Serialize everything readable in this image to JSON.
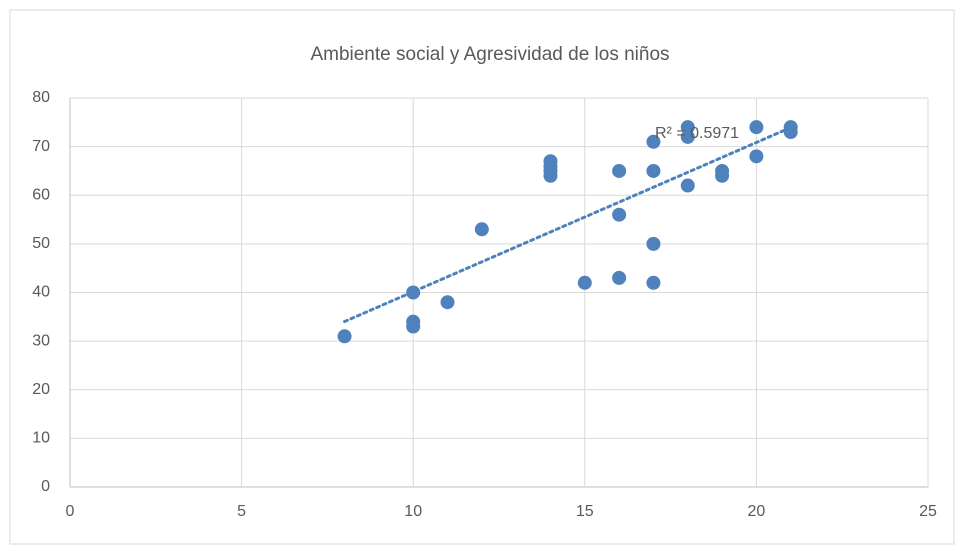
{
  "chart_data": {
    "type": "scatter",
    "title": "Ambiente social y Agresividad de los niños",
    "series": [
      {
        "color": "#4f81bd",
        "x": [
          8,
          10,
          10,
          10,
          11,
          12,
          14,
          14,
          14,
          14,
          15,
          16,
          16,
          16,
          17,
          17,
          17,
          17,
          18,
          18,
          18,
          19,
          19,
          20,
          20,
          21,
          21
        ],
        "values": [
          31,
          40,
          34,
          33,
          38,
          53,
          67,
          66,
          65,
          64,
          42,
          65,
          56,
          43,
          71,
          65,
          50,
          42,
          74,
          72,
          62,
          65,
          64,
          74,
          68,
          74,
          73
        ]
      }
    ],
    "trendline": {
      "type": "linear",
      "annotation": "R² = 0.5971"
    },
    "xlim": [
      0,
      25
    ],
    "xticks": [
      0,
      5,
      10,
      15,
      20,
      25
    ],
    "ylim": [
      0,
      80
    ],
    "yticks": [
      0,
      10,
      20,
      30,
      40,
      50,
      60,
      70,
      80
    ],
    "grid": true
  }
}
